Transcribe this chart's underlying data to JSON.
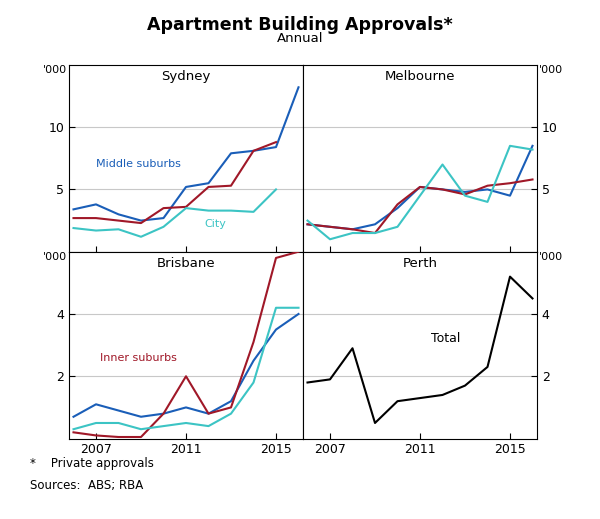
{
  "title": "Apartment Building Approvals*",
  "subtitle": "Annual",
  "footnote": "*    Private approvals",
  "sources": "Sources:  ABS; RBA",
  "years": [
    2006,
    2007,
    2008,
    2009,
    2010,
    2011,
    2012,
    2013,
    2014,
    2015
  ],
  "sydney": {
    "label": "Sydney",
    "middle_suburbs": [
      3.4,
      3.8,
      3.0,
      2.5,
      2.7,
      5.2,
      5.5,
      7.9,
      8.1,
      8.4
    ],
    "inner_suburbs": [
      2.7,
      2.7,
      2.5,
      2.3,
      3.5,
      3.6,
      5.2,
      5.3,
      8.1,
      8.8
    ],
    "city": [
      1.9,
      1.7,
      1.8,
      1.2,
      2.0,
      3.5,
      3.3,
      3.3,
      3.2,
      5.0
    ],
    "middle_extra_x": [
      2015
    ],
    "middle_extra_y": [
      13.2
    ],
    "ylim": [
      0,
      15
    ],
    "yticks": [
      5,
      10
    ],
    "ylim_top": 15
  },
  "melbourne": {
    "label": "Melbourne",
    "middle_suburbs": [
      2.2,
      2.0,
      1.8,
      2.2,
      3.5,
      5.2,
      5.0,
      4.8,
      5.0,
      4.5
    ],
    "inner_suburbs": [
      2.2,
      2.0,
      1.8,
      1.5,
      3.8,
      5.2,
      5.0,
      4.6,
      5.3,
      5.5
    ],
    "city": [
      2.5,
      1.0,
      1.5,
      1.5,
      2.0,
      4.5,
      7.0,
      4.5,
      4.0,
      8.5
    ],
    "extra_blue_x": [
      2015
    ],
    "extra_blue_y": [
      8.5
    ],
    "extra_teal_x": [
      2015
    ],
    "extra_teal_y": [
      8.2
    ],
    "ylim": [
      0,
      15
    ],
    "yticks": [
      5,
      10
    ],
    "ylim_top": 15
  },
  "brisbane": {
    "label": "Brisbane",
    "middle_suburbs": [
      0.7,
      1.1,
      0.9,
      0.7,
      0.8,
      1.0,
      0.8,
      1.2,
      2.5,
      3.5
    ],
    "inner_suburbs": [
      0.2,
      0.1,
      0.05,
      0.05,
      0.8,
      2.0,
      0.8,
      1.0,
      3.1,
      5.8
    ],
    "city": [
      0.3,
      0.5,
      0.5,
      0.3,
      0.4,
      0.5,
      0.4,
      0.8,
      1.8,
      4.2
    ],
    "extra_blue_x": [
      2015
    ],
    "extra_blue_y": [
      4.0
    ],
    "extra_teal_x": [
      2015
    ],
    "extra_teal_y": [
      4.2
    ],
    "ylim": [
      0,
      6
    ],
    "yticks": [
      2,
      4
    ],
    "ylim_top": 6
  },
  "perth": {
    "label": "Perth",
    "total": [
      1.8,
      1.9,
      2.9,
      0.5,
      1.2,
      1.3,
      1.4,
      1.7,
      2.3,
      5.2
    ],
    "extra_x": [
      2015
    ],
    "extra_y": [
      4.5
    ],
    "ylim": [
      0,
      6
    ],
    "yticks": [
      2,
      4
    ],
    "ylim_top": 6
  },
  "colors": {
    "blue": "#1a5eb8",
    "red": "#a01828",
    "teal": "#3cc4c4",
    "black": "#000000"
  },
  "x_ticks": [
    2007,
    2011,
    2015
  ],
  "xlim": [
    2005.8,
    2016.2
  ],
  "background_color": "#ffffff",
  "grid_color": "#c8c8c8"
}
